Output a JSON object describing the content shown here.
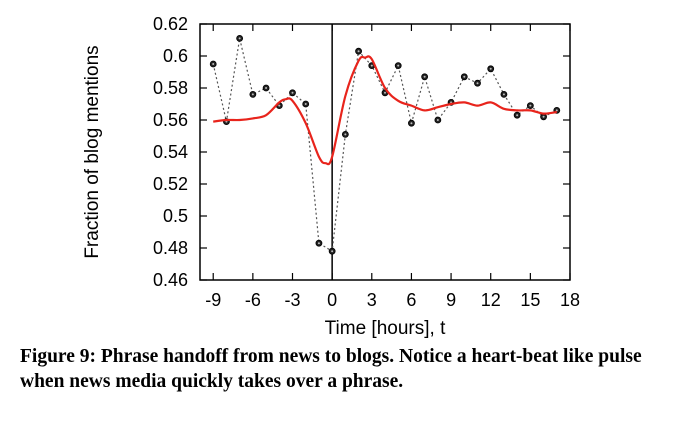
{
  "chart_data": {
    "type": "line",
    "xlabel": "Time [hours], t",
    "ylabel": "Fraction of blog mentions",
    "xlim": [
      -10,
      18
    ],
    "ylim": [
      0.46,
      0.62
    ],
    "xticks": [
      -9,
      -6,
      -3,
      0,
      3,
      6,
      9,
      12,
      15,
      18
    ],
    "yticks": [
      0.46,
      0.48,
      0.5,
      0.52,
      0.54,
      0.56,
      0.58,
      0.6,
      0.62
    ],
    "xtick_labels": [
      "-9",
      "-6",
      "-3",
      "0",
      "3",
      "6",
      "9",
      "12",
      "15",
      "18"
    ],
    "ytick_labels": [
      "0.46",
      "0.48",
      "0.5",
      "0.52",
      "0.54",
      "0.56",
      "0.58",
      "0.6",
      "0.62"
    ],
    "vertical_line_x": 0,
    "grid": false,
    "series": [
      {
        "style": "dotted-markers",
        "color": "#555555",
        "x": [
          -9,
          -8,
          -7,
          -6,
          -5,
          -4,
          -3,
          -2,
          -1,
          0,
          1,
          2,
          3,
          4,
          5,
          6,
          7,
          8,
          9,
          10,
          11,
          12,
          13,
          14,
          15,
          16,
          17
        ],
        "y": [
          0.595,
          0.559,
          0.611,
          0.576,
          0.58,
          0.569,
          0.577,
          0.57,
          0.483,
          0.478,
          0.551,
          0.603,
          0.594,
          0.577,
          0.594,
          0.558,
          0.587,
          0.56,
          0.571,
          0.587,
          0.583,
          0.592,
          0.576,
          0.563,
          0.569,
          0.562,
          0.566
        ]
      },
      {
        "style": "smooth-line",
        "color": "#e8241c",
        "x": [
          -9,
          -8,
          -7,
          -6,
          -5,
          -4,
          -3.5,
          -3,
          -2,
          -1,
          -0.5,
          0,
          1,
          2,
          2.5,
          3,
          4,
          5,
          6,
          7,
          8,
          9,
          10,
          11,
          12,
          13,
          14,
          15,
          16,
          17
        ],
        "y": [
          0.559,
          0.56,
          0.56,
          0.561,
          0.563,
          0.571,
          0.573,
          0.572,
          0.558,
          0.537,
          0.533,
          0.537,
          0.575,
          0.597,
          0.599,
          0.598,
          0.58,
          0.572,
          0.569,
          0.566,
          0.568,
          0.57,
          0.571,
          0.569,
          0.571,
          0.567,
          0.566,
          0.566,
          0.564,
          0.565
        ]
      }
    ]
  },
  "caption": "Figure 9: Phrase handoff from news to blogs. Notice a heart-beat like pulse when news media quickly takes over a phrase."
}
